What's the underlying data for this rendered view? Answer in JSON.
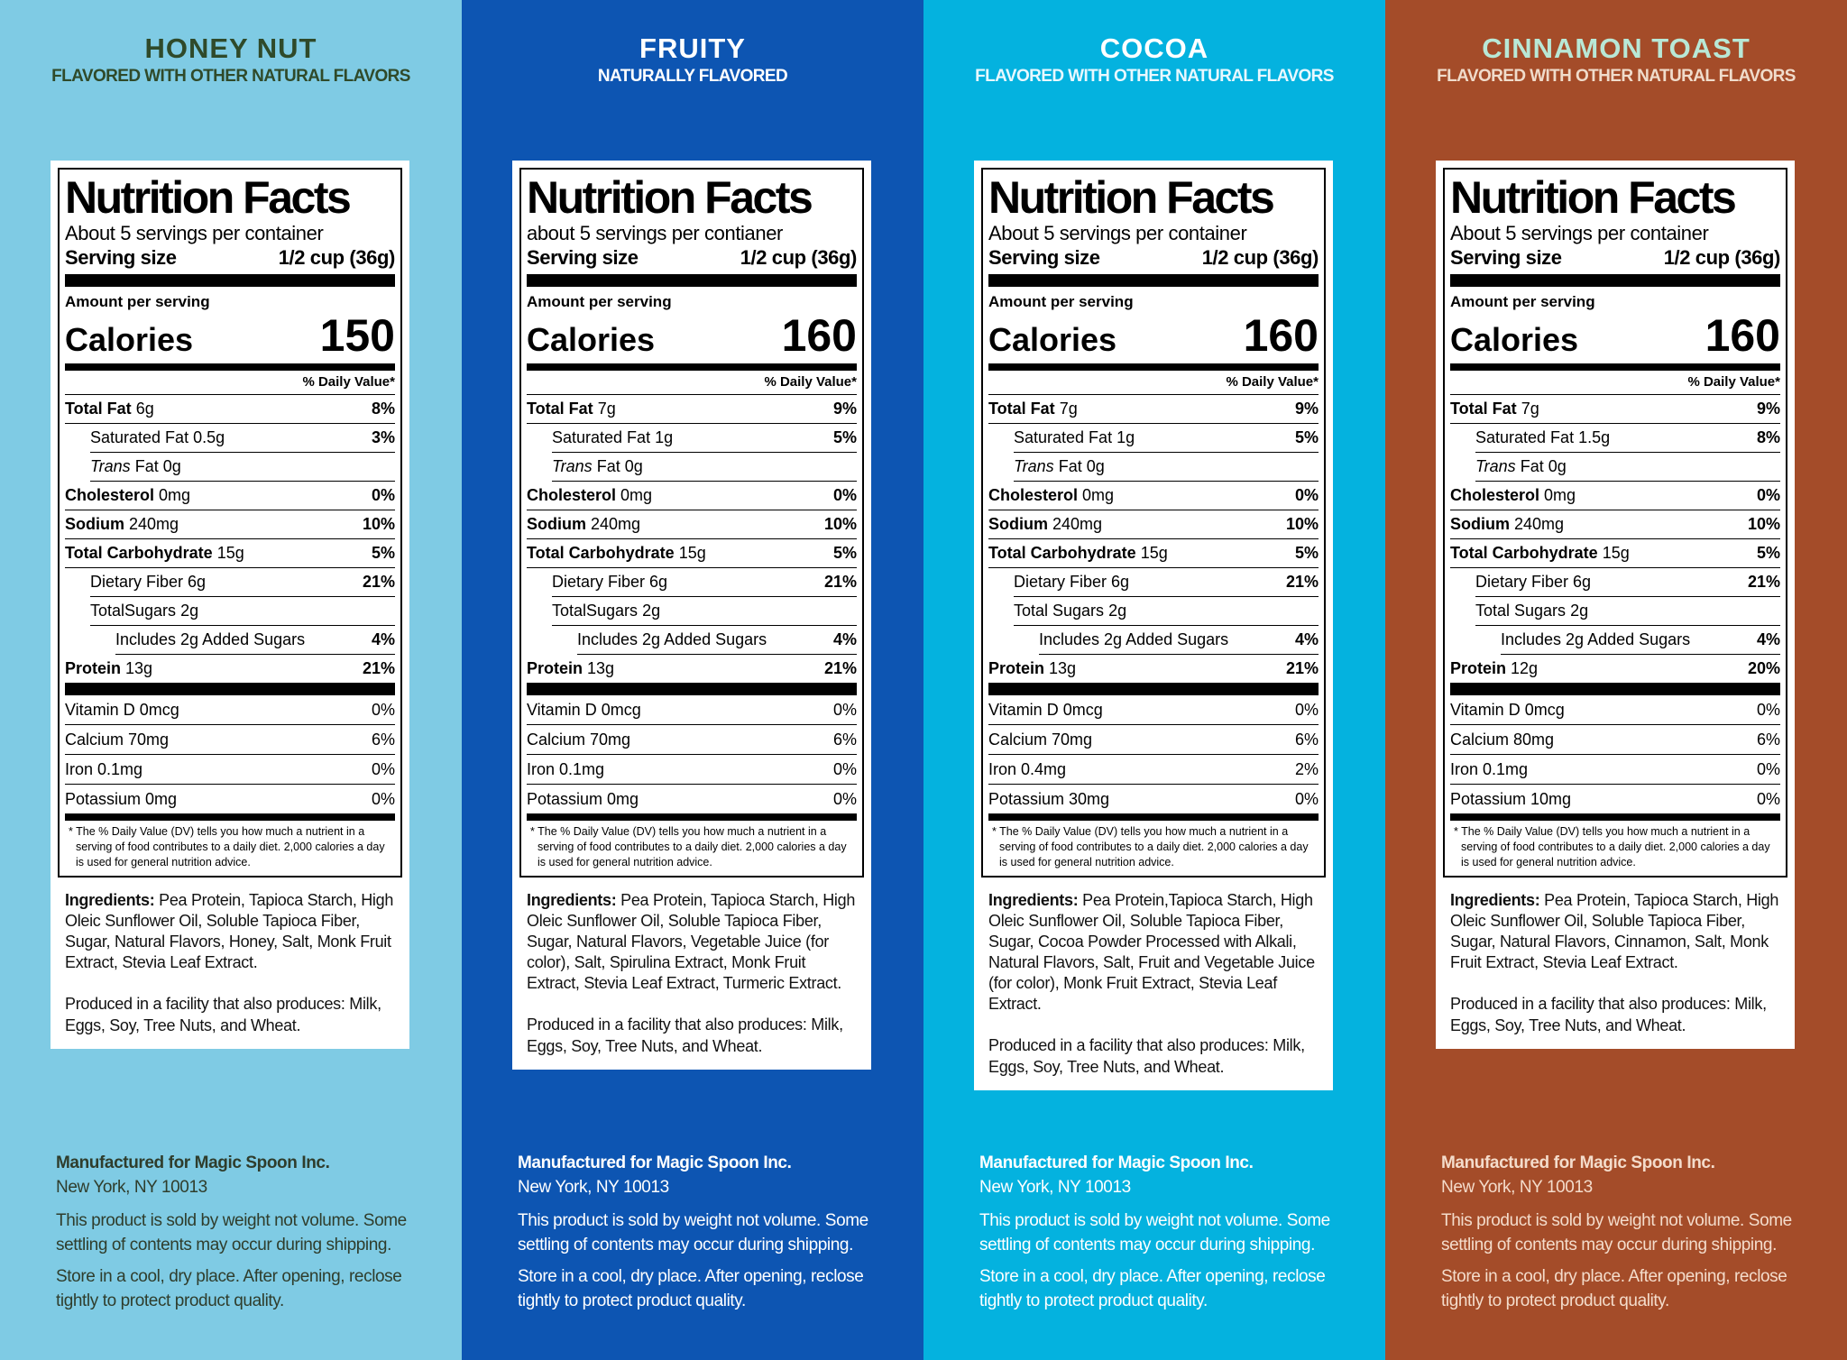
{
  "panels": [
    {
      "name": "HONEY NUT",
      "subtitle": "FLAVORED WITH OTHER NATURAL FLAVORS",
      "facts": {
        "title": "Nutrition Facts",
        "servings": "About 5 servings per container",
        "serving_label": "Serving size",
        "serving_value": "1/2 cup (36g)",
        "amount_label": "Amount per serving",
        "calories_label": "Calories",
        "calories": "150",
        "dv_header": "% Daily Value*",
        "nutrients": [
          {
            "name": "Total Fat",
            "amount": "6g",
            "dv": "8%"
          },
          {
            "name": "Saturated Fat",
            "amount": "0.5g",
            "dv": "3%"
          },
          {
            "name": "Trans",
            "amount": "Fat 0g"
          },
          {
            "name": "Cholesterol",
            "amount": "0mg",
            "dv": "0%"
          },
          {
            "name": "Sodium",
            "amount": "240mg",
            "dv": "10%"
          },
          {
            "name": "Total Carbohydrate",
            "amount": "15g",
            "dv": "5%"
          },
          {
            "name": "Dietary Fiber",
            "amount": "6g",
            "dv": "21%"
          },
          {
            "name": "TotalSugars",
            "amount": "2g"
          },
          {
            "name": "Includes 2g Added Sugars",
            "dv": "4%"
          },
          {
            "name": "Protein",
            "amount": "13g",
            "dv": "21%"
          }
        ],
        "vitamins": [
          {
            "name": "Vitamin D 0mcg",
            "dv": "0%"
          },
          {
            "name": "Calcium 70mg",
            "dv": "6%"
          },
          {
            "name": "Iron 0.1mg",
            "dv": "0%"
          },
          {
            "name": "Potassium 0mg",
            "dv": "0%"
          }
        ],
        "footnote": "* The % Daily Value (DV) tells you how much a nutrient in a serving of food contributes to a daily diet. 2,000 calories a day is used for general nutrition advice."
      },
      "ingredients_label": "Ingredients:",
      "ingredients": "Pea Protein, Tapioca Starch, High Oleic Sunflower Oil, Soluble Tapioca Fiber, Sugar, Natural Flavors, Honey, Salt, Monk Fruit Extract, Stevia Leaf Extract.",
      "facility": "Produced in a facility that also produces: Milk, Eggs, Soy, Tree Nuts, and Wheat.",
      "manufacturer": "Manufactured for Magic Spoon Inc.",
      "address": "New York, NY 10013",
      "weight_note": "This product is sold by weight not volume. Some settling of contents may occur during shipping.",
      "storage_note": "Store in a cool, dry place. After opening, reclose tightly to protect product quality."
    },
    {
      "name": "FRUITY",
      "subtitle": "NATURALLY FLAVORED",
      "facts": {
        "title": "Nutrition Facts",
        "servings": "about 5 servings per contianer",
        "serving_label": "Serving size",
        "serving_value": "1/2 cup (36g)",
        "amount_label": "Amount per serving",
        "calories_label": "Calories",
        "calories": "160",
        "dv_header": "% Daily Value*",
        "nutrients": [
          {
            "name": "Total Fat",
            "amount": "7g",
            "dv": "9%"
          },
          {
            "name": "Saturated Fat",
            "amount": "1g",
            "dv": "5%"
          },
          {
            "name": "Trans",
            "amount": "Fat 0g"
          },
          {
            "name": "Cholesterol",
            "amount": "0mg",
            "dv": "0%"
          },
          {
            "name": "Sodium",
            "amount": "240mg",
            "dv": "10%"
          },
          {
            "name": "Total Carbohydrate",
            "amount": "15g",
            "dv": "5%"
          },
          {
            "name": "Dietary Fiber",
            "amount": "6g",
            "dv": "21%"
          },
          {
            "name": "TotalSugars",
            "amount": "2g"
          },
          {
            "name": "Includes 2g Added Sugars",
            "dv": "4%"
          },
          {
            "name": "Protein",
            "amount": "13g",
            "dv": "21%"
          }
        ],
        "vitamins": [
          {
            "name": "Vitamin D 0mcg",
            "dv": "0%"
          },
          {
            "name": "Calcium 70mg",
            "dv": "6%"
          },
          {
            "name": "Iron 0.1mg",
            "dv": "0%"
          },
          {
            "name": "Potassium 0mg",
            "dv": "0%"
          }
        ],
        "footnote": "* The % Daily Value (DV) tells you how much a nutrient in a serving of food contributes to a daily diet. 2,000 calories a day is used for general nutrition advice."
      },
      "ingredients_label": "Ingredients:",
      "ingredients": "Pea Protein, Tapioca Starch, High Oleic Sunflower Oil, Soluble Tapioca Fiber, Sugar, Natural Flavors, Vegetable Juice (for color), Salt, Spirulina Extract, Monk Fruit Extract, Stevia Leaf Extract, Turmeric Extract.",
      "facility": "Produced in a facility that also produces: Milk, Eggs, Soy, Tree Nuts, and Wheat.",
      "manufacturer": "Manufactured for Magic Spoon Inc.",
      "address": "New York, NY 10013",
      "weight_note": "This product is sold by weight not volume. Some settling of contents may occur during shipping.",
      "storage_note": "Store in a cool, dry place. After opening, reclose tightly to protect product quality."
    },
    {
      "name": "COCOA",
      "subtitle": "FLAVORED WITH OTHER NATURAL FLAVORS",
      "facts": {
        "title": "Nutrition Facts",
        "servings": "About 5 servings per container",
        "serving_label": "Serving size",
        "serving_value": "1/2 cup (36g)",
        "amount_label": "Amount per serving",
        "calories_label": "Calories",
        "calories": "160",
        "dv_header": "% Daily Value*",
        "nutrients": [
          {
            "name": "Total Fat",
            "amount": "7g",
            "dv": "9%"
          },
          {
            "name": "Saturated Fat",
            "amount": "1g",
            "dv": "5%"
          },
          {
            "name": "Trans",
            "amount": "Fat 0g"
          },
          {
            "name": "Cholesterol",
            "amount": "0mg",
            "dv": "0%"
          },
          {
            "name": "Sodium",
            "amount": "240mg",
            "dv": "10%"
          },
          {
            "name": "Total Carbohydrate",
            "amount": "15g",
            "dv": "5%"
          },
          {
            "name": "Dietary Fiber",
            "amount": "6g",
            "dv": "21%"
          },
          {
            "name": "Total Sugars",
            "amount": "2g"
          },
          {
            "name": "Includes 2g Added Sugars",
            "dv": "4%"
          },
          {
            "name": "Protein",
            "amount": "13g",
            "dv": "21%"
          }
        ],
        "vitamins": [
          {
            "name": "Vitamin D 0mcg",
            "dv": "0%"
          },
          {
            "name": "Calcium 70mg",
            "dv": "6%"
          },
          {
            "name": "Iron 0.4mg",
            "dv": "2%"
          },
          {
            "name": "Potassium 30mg",
            "dv": "0%"
          }
        ],
        "footnote": "* The % Daily Value (DV) tells you how much a nutrient in a serving of food contributes to a daily diet. 2,000 calories a day is used for general nutrition advice."
      },
      "ingredients_label": "Ingredients:",
      "ingredients": "Pea Protein,Tapioca Starch, High Oleic Sunflower Oil, Soluble Tapioca Fiber, Sugar, Cocoa Powder Processed with Alkali, Natural Flavors, Salt, Fruit and Vegetable Juice (for color), Monk Fruit Extract, Stevia Leaf Extract.",
      "facility": "Produced in a facility that also produces: Milk, Eggs, Soy, Tree Nuts, and Wheat.",
      "manufacturer": "Manufactured for Magic Spoon Inc.",
      "address": "New York, NY 10013",
      "weight_note": "This product is sold by weight not volume. Some settling of contents may occur during shipping.",
      "storage_note": "Store in a cool, dry place. After opening, reclose tightly to protect product quality."
    },
    {
      "name": "CINNAMON TOAST",
      "subtitle": "FLAVORED WITH OTHER NATURAL FLAVORS",
      "facts": {
        "title": "Nutrition Facts",
        "servings": "About 5 servings per container",
        "serving_label": "Serving size",
        "serving_value": "1/2 cup (36g)",
        "amount_label": "Amount per serving",
        "calories_label": "Calories",
        "calories": "160",
        "dv_header": "% Daily Value*",
        "nutrients": [
          {
            "name": "Total Fat",
            "amount": "7g",
            "dv": "9%"
          },
          {
            "name": "Saturated Fat",
            "amount": "1.5g",
            "dv": "8%"
          },
          {
            "name": "Trans",
            "amount": "Fat 0g"
          },
          {
            "name": "Cholesterol",
            "amount": "0mg",
            "dv": "0%"
          },
          {
            "name": "Sodium",
            "amount": "240mg",
            "dv": "10%"
          },
          {
            "name": "Total Carbohydrate",
            "amount": "15g",
            "dv": "5%"
          },
          {
            "name": "Dietary Fiber",
            "amount": "6g",
            "dv": "21%"
          },
          {
            "name": "Total Sugars",
            "amount": "2g"
          },
          {
            "name": "Includes 2g Added Sugars",
            "dv": "4%"
          },
          {
            "name": "Protein",
            "amount": "12g",
            "dv": "20%"
          }
        ],
        "vitamins": [
          {
            "name": "Vitamin D 0mcg",
            "dv": "0%"
          },
          {
            "name": "Calcium 80mg",
            "dv": "6%"
          },
          {
            "name": "Iron 0.1mg",
            "dv": "0%"
          },
          {
            "name": "Potassium 10mg",
            "dv": "0%"
          }
        ],
        "footnote": "* The % Daily Value (DV) tells you how much a nutrient in a serving of food contributes to a daily diet. 2,000 calories a day is used for general nutrition advice."
      },
      "ingredients_label": "Ingredients:",
      "ingredients": "Pea Protein, Tapioca Starch, High Oleic Sunflower Oil, Soluble Tapioca Fiber, Sugar, Natural Flavors, Cinnamon, Salt, Monk Fruit Extract, Stevia Leaf Extract.",
      "facility": "Produced in a facility that also produces: Milk, Eggs, Soy, Tree Nuts, and Wheat.",
      "manufacturer": "Manufactured for Magic Spoon Inc.",
      "address": "New York, NY 10013",
      "weight_note": "This product is sold by weight not volume. Some settling of contents may occur during shipping.",
      "storage_note": "Store in a cool, dry place. After opening, reclose tightly to protect product quality."
    }
  ]
}
